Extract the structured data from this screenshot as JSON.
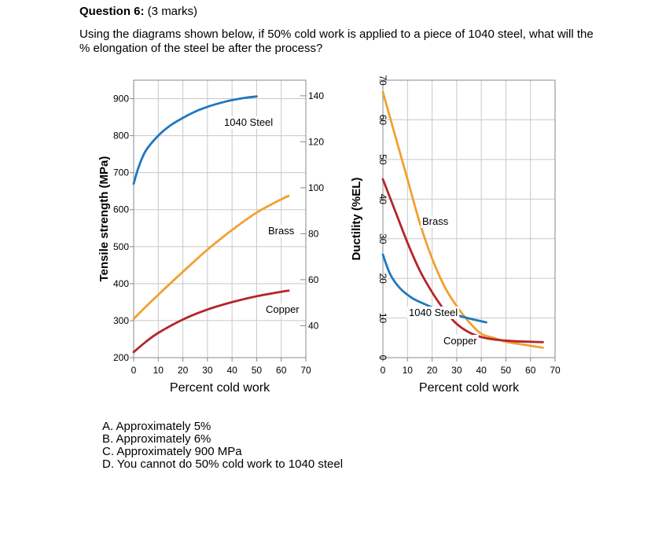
{
  "question": {
    "title_bold": "Question 6:",
    "title_marks": " (3 marks)",
    "text": "Using the diagrams shown below, if 50% cold work is applied to a piece of 1040 steel, what will the % elongation of the steel be after the process?",
    "options": [
      "A.  Approximately 5%",
      "B.  Approximately 6%",
      "C.  Approximately 900 MPa",
      "D.  You cannot do 50% cold work to 1040 steel"
    ]
  },
  "colors": {
    "steel": "#1f78c1",
    "brass": "#f2a030",
    "copper": "#b3262a",
    "grid": "#c8c8c8",
    "frame": "#888888"
  },
  "chart_data": [
    {
      "type": "line",
      "xlabel": "Percent cold work",
      "ylabel": "Tensile strength (MPa)",
      "ylabel_right": "",
      "xlim": [
        0,
        70
      ],
      "ylim": [
        200,
        950
      ],
      "ylim_right": [
        26.1,
        146.8
      ],
      "x_ticks": [
        "0",
        "10",
        "20",
        "30",
        "40",
        "50",
        "60",
        "70"
      ],
      "y_ticks": [
        "200",
        "300",
        "400",
        "500",
        "600",
        "700",
        "800",
        "900"
      ],
      "y_ticks_right": [
        "40",
        "60",
        "80",
        "100",
        "120",
        "140"
      ],
      "grid": true,
      "series": [
        {
          "name": "1040 Steel",
          "color": "#1f78c1",
          "x": [
            0,
            2,
            5,
            10,
            15,
            20,
            25,
            30,
            35,
            40,
            45,
            50
          ],
          "y": [
            670,
            715,
            760,
            800,
            828,
            848,
            865,
            878,
            888,
            896,
            902,
            906
          ]
        },
        {
          "name": "Brass",
          "color": "#f2a030",
          "x": [
            0,
            5,
            10,
            20,
            30,
            40,
            50,
            60,
            63
          ],
          "y": [
            305,
            338,
            370,
            432,
            492,
            545,
            592,
            628,
            637
          ]
        },
        {
          "name": "Copper",
          "color": "#b3262a",
          "x": [
            0,
            5,
            10,
            20,
            30,
            40,
            50,
            60,
            63
          ],
          "y": [
            215,
            243,
            267,
            303,
            330,
            350,
            366,
            378,
            381
          ]
        }
      ]
    },
    {
      "type": "line",
      "xlabel": "Percent cold work",
      "ylabel": "Ductility (%EL)",
      "xlim": [
        0,
        70
      ],
      "ylim": [
        0,
        70
      ],
      "x_ticks": [
        "0",
        "10",
        "20",
        "30",
        "40",
        "50",
        "60",
        "70"
      ],
      "y_ticks": [
        "0",
        "10",
        "20",
        "30",
        "40",
        "50",
        "60",
        "70"
      ],
      "grid": true,
      "series": [
        {
          "name": "Brass",
          "color": "#f2a030",
          "x": [
            0,
            5,
            10,
            15,
            20,
            25,
            30,
            35,
            40,
            45,
            50,
            55,
            60,
            65
          ],
          "y": [
            67,
            56,
            45,
            34,
            25,
            18,
            13,
            9,
            6,
            5,
            4,
            3.5,
            3,
            2.5
          ]
        },
        {
          "name": "1040 Steel",
          "color": "#1f78c1",
          "x": [
            0,
            3,
            7,
            12,
            17,
            22,
            27,
            32,
            37,
            42
          ],
          "y": [
            26,
            21,
            17.5,
            15,
            13.5,
            12.2,
            11.3,
            10.4,
            9.6,
            8.9
          ]
        },
        {
          "name": "Copper",
          "color": "#b3262a",
          "x": [
            0,
            5,
            10,
            15,
            20,
            25,
            30,
            35,
            40,
            45,
            50,
            55,
            60,
            65
          ],
          "y": [
            45,
            37,
            29,
            22,
            16.5,
            12,
            8.5,
            6.4,
            5.2,
            4.6,
            4.3,
            4.1,
            4,
            3.9
          ]
        }
      ]
    }
  ]
}
